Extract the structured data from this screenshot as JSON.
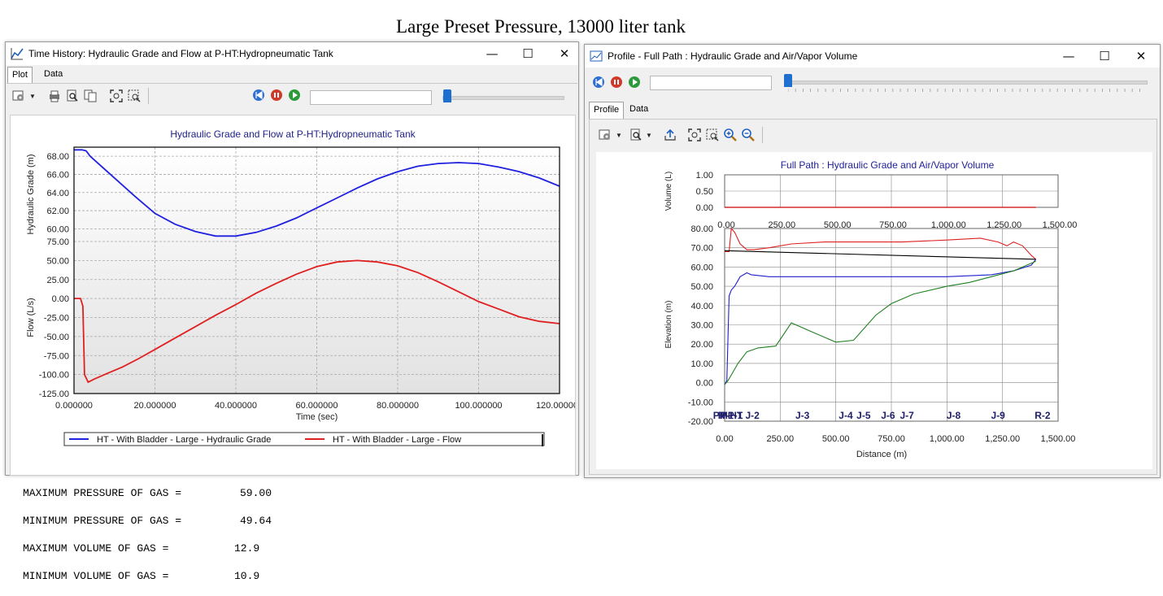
{
  "page_title": "Large Preset Pressure, 13000 liter tank",
  "window_buttons": {
    "minimize": "—",
    "maximize": "☐",
    "close": "✕"
  },
  "left_window": {
    "title": "Time History: Hydraulic Grade and Flow at P-HT:Hydropneumatic Tank",
    "tabs": [
      "Plot",
      "Data"
    ],
    "active_tab": "Plot",
    "toolbar_icons": [
      "chart-options-icon",
      "print-icon",
      "print-preview-icon",
      "copy-icon",
      "zoom-extents-icon",
      "zoom-window-icon"
    ],
    "playback_icons": [
      "rewind-icon",
      "pause-icon",
      "play-icon"
    ],
    "playback_position": 0.0,
    "chart_title": "Hydraulic Grade and Flow at P-HT:Hydropneumatic Tank",
    "legend": [
      "HT - With Bladder - Large - Hydraulic Grade",
      "HT - With Bladder - Large - Flow"
    ]
  },
  "right_window": {
    "title": "Profile - Full Path : Hydraulic Grade and Air/Vapor Volume",
    "tabs": [
      "Profile",
      "Data"
    ],
    "active_tab": "Profile",
    "toolbar_icons": [
      "chart-options-icon",
      "print-preview-icon",
      "export-icon",
      "zoom-extents-icon",
      "zoom-window-icon",
      "zoom-in-icon",
      "zoom-out-icon"
    ],
    "playback_icons": [
      "rewind-icon",
      "pause-icon",
      "play-icon"
    ],
    "playback_position": 0.0,
    "chart_title": "Full Path : Hydraulic Grade and Air/Vapor Volume"
  },
  "gas_summary": [
    {
      "label": "MAXIMUM PRESSURE OF GAS =",
      "value": "59.00"
    },
    {
      "label": "MINIMUM PRESSURE OF GAS =",
      "value": "49.64"
    },
    {
      "label": "MAXIMUM VOLUME OF GAS =",
      "value": "12.9"
    },
    {
      "label": "MINIMUM VOLUME OF GAS =",
      "value": "10.9"
    }
  ],
  "chart_data": [
    {
      "type": "line",
      "title": "Hydraulic Grade and Flow at P-HT:Hydropneumatic Tank",
      "xlabel": "Time (sec)",
      "xlim": [
        0,
        120
      ],
      "x_ticks": [
        "0.000000",
        "20.000000",
        "40.000000",
        "60.000000",
        "80.000000",
        "100.000000",
        "120.000000"
      ],
      "x_tick_values": [
        0,
        20,
        40,
        60,
        80,
        100,
        120
      ],
      "panels": [
        {
          "ylabel": "Hydraulic Grade (m)",
          "ylim": [
            58.6,
            69.0
          ],
          "y_ticks": [
            "60.00",
            "62.00",
            "64.00",
            "66.00",
            "68.00"
          ],
          "y_tick_values": [
            60,
            62,
            64,
            66,
            68
          ],
          "series": [
            {
              "name": "HT - With Bladder - Large - Hydraulic Grade",
              "color": "#2020e0",
              "x": [
                0,
                2,
                3,
                4,
                6,
                10,
                15,
                20,
                25,
                30,
                35,
                40,
                45,
                50,
                55,
                60,
                65,
                70,
                75,
                80,
                85,
                90,
                95,
                100,
                105,
                110,
                115,
                120
              ],
              "y": [
                68.7,
                68.7,
                68.6,
                68.0,
                67.2,
                65.6,
                63.6,
                61.7,
                60.5,
                59.7,
                59.2,
                59.2,
                59.6,
                60.3,
                61.2,
                62.3,
                63.4,
                64.5,
                65.5,
                66.3,
                66.9,
                67.2,
                67.3,
                67.2,
                66.8,
                66.3,
                65.6,
                64.7
              ]
            }
          ]
        },
        {
          "ylabel": "Flow (L/s)",
          "ylim": [
            -125,
            75
          ],
          "y_ticks": [
            "-125.00",
            "-100.00",
            "-75.00",
            "-50.00",
            "-25.00",
            "0.00",
            "25.00",
            "50.00",
            "75.00"
          ],
          "y_tick_values": [
            -125,
            -100,
            -75,
            -50,
            -25,
            0,
            25,
            50,
            75
          ],
          "series": [
            {
              "name": "HT - With Bladder - Large - Flow",
              "color": "#e02020",
              "x": [
                0,
                1.6,
                2.2,
                2.6,
                3.5,
                5,
                8,
                12,
                16,
                20,
                25,
                30,
                35,
                40,
                45,
                50,
                55,
                60,
                65,
                70,
                75,
                80,
                85,
                90,
                95,
                100,
                105,
                110,
                115,
                120
              ],
              "y": [
                0,
                0,
                -10,
                -100,
                -110,
                -106,
                -99,
                -90,
                -79,
                -67,
                -52,
                -37,
                -22,
                -8,
                7,
                20,
                32,
                42,
                48,
                50,
                48,
                43,
                34,
                22,
                9,
                -4,
                -14,
                -24,
                -30,
                -33
              ]
            }
          ]
        }
      ],
      "legend": [
        "HT - With Bladder - Large - Hydraulic Grade",
        "HT - With Bladder - Large - Flow"
      ],
      "legend_position": "bottom",
      "grid": true
    },
    {
      "type": "line",
      "title": "Full Path : Hydraulic Grade and Air/Vapor Volume",
      "xlabel": "Distance (m)",
      "xlim": [
        0,
        1500
      ],
      "x_ticks": [
        "0.00",
        "250.00",
        "500.00",
        "750.00",
        "1,000.00",
        "1,250.00",
        "1,500.00"
      ],
      "x_tick_values": [
        0,
        250,
        500,
        750,
        1000,
        1250,
        1500
      ],
      "panels": [
        {
          "ylabel": "Volume (L)",
          "ylim": [
            0,
            1
          ],
          "y_ticks": [
            "0.00",
            "0.50",
            "1.00"
          ],
          "y_tick_values": [
            0,
            0.5,
            1
          ],
          "series": [
            {
              "name": "",
              "color": "#cc0000",
              "x": [
                0,
                1400
              ],
              "y": [
                0,
                0
              ]
            }
          ]
        },
        {
          "ylabel": "Elevation (m)",
          "ylim": [
            -20,
            80
          ],
          "y_ticks": [
            "-20.00",
            "-10.00",
            "0.00",
            "10.00",
            "20.00",
            "30.00",
            "40.00",
            "50.00",
            "60.00",
            "70.00",
            "80.00"
          ],
          "y_tick_values": [
            -20,
            -10,
            0,
            10,
            20,
            30,
            40,
            50,
            60,
            70,
            80
          ],
          "node_labels": [
            "R-1",
            "PMP-1",
            "P-HT",
            "J-2",
            "J-3",
            "J-4",
            "J-5",
            "J-6",
            "J-7",
            "J-8",
            "J-9",
            "R-2"
          ],
          "node_label_positions": [
            5,
            15,
            30,
            125,
            350,
            545,
            625,
            735,
            820,
            1030,
            1230,
            1430
          ],
          "series": [
            {
              "name": "",
              "color": "#dd2020",
              "x": [
                0,
                20,
                30,
                45,
                70,
                100,
                130,
                200,
                300,
                450,
                600,
                800,
                1000,
                1150,
                1230,
                1270,
                1300,
                1340,
                1380,
                1400
              ],
              "y": [
                68,
                68,
                80,
                78,
                72,
                69,
                69,
                70,
                72,
                73,
                73,
                73,
                74,
                75,
                73,
                71,
                73,
                71,
                66,
                64
              ]
            },
            {
              "name": "",
              "color": "#000000",
              "x": [
                0,
                1400
              ],
              "y": [
                68.5,
                64
              ]
            },
            {
              "name": "",
              "color": "#2020cc",
              "x": [
                0,
                10,
                20,
                30,
                45,
                70,
                100,
                120,
                200,
                300,
                500,
                700,
                1000,
                1200,
                1300,
                1380,
                1400
              ],
              "y": [
                -1,
                1,
                45,
                48,
                50,
                55,
                57,
                56,
                55,
                55,
                55,
                55,
                55,
                56,
                58,
                61,
                64
              ]
            },
            {
              "name": "",
              "color": "#208020",
              "x": [
                0,
                15,
                30,
                60,
                100,
                150,
                230,
                300,
                400,
                500,
                580,
                680,
                750,
                850,
                1000,
                1100,
                1200,
                1300,
                1400
              ],
              "y": [
                -1,
                1,
                4,
                10,
                16,
                18,
                19,
                31,
                26,
                21,
                22,
                35,
                41,
                46,
                50,
                52,
                55,
                58,
                63
              ]
            }
          ]
        }
      ],
      "grid": true
    }
  ]
}
